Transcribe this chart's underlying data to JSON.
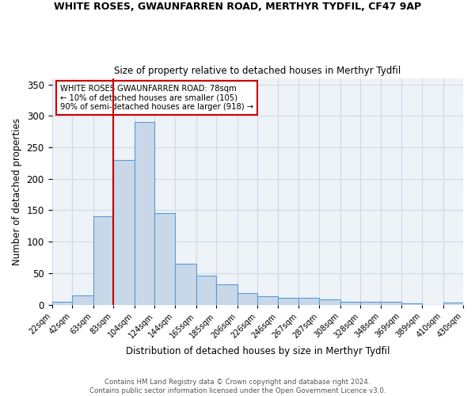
{
  "title": "WHITE ROSES, GWAUNFARREN ROAD, MERTHYR TYDFIL, CF47 9AP",
  "subtitle": "Size of property relative to detached houses in Merthyr Tydfil",
  "xlabel": "Distribution of detached houses by size in Merthyr Tydfil",
  "ylabel": "Number of detached properties",
  "footer": "Contains HM Land Registry data © Crown copyright and database right 2024.\nContains public sector information licensed under the Open Government Licence v3.0.",
  "bins": [
    "22sqm",
    "42sqm",
    "63sqm",
    "83sqm",
    "104sqm",
    "124sqm",
    "144sqm",
    "165sqm",
    "185sqm",
    "206sqm",
    "226sqm",
    "246sqm",
    "267sqm",
    "287sqm",
    "308sqm",
    "328sqm",
    "348sqm",
    "369sqm",
    "389sqm",
    "410sqm",
    "430sqm"
  ],
  "values": [
    5,
    15,
    140,
    230,
    290,
    145,
    65,
    46,
    32,
    19,
    14,
    11,
    11,
    8,
    5,
    5,
    5,
    2,
    0,
    3
  ],
  "bar_color": "#c8d8e8",
  "bar_edge_color": "#5b9bd5",
  "grid_color": "#d0d8e8",
  "bg_color": "#eef3f8",
  "vline_x": 83,
  "vline_color": "#cc0000",
  "annotation_text": "WHITE ROSES GWAUNFARREN ROAD: 78sqm\n← 10% of detached houses are smaller (105)\n90% of semi-detached houses are larger (918) →",
  "annotation_box_color": "white",
  "annotation_box_edge": "#cc0000",
  "ylim": [
    0,
    360
  ],
  "bin_edges": [
    22,
    42,
    63,
    83,
    104,
    124,
    144,
    165,
    185,
    206,
    226,
    246,
    267,
    287,
    308,
    328,
    348,
    369,
    389,
    410,
    430
  ]
}
